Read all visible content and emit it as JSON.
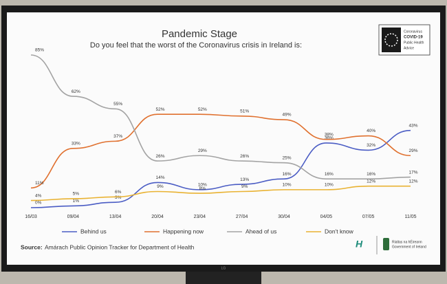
{
  "chart_data": {
    "type": "line",
    "title": "Pandemic Stage",
    "subtitle": "Do you feel that the worst of the Coronavirus crisis in Ireland is:",
    "categories": [
      "16/03",
      "09/04",
      "13/04",
      "20/04",
      "23/04",
      "27/04",
      "30/04",
      "04/05",
      "07/05",
      "11/05"
    ],
    "series": [
      {
        "name": "Behind us",
        "color": "#4a5cc4",
        "values": [
          0,
          1,
          3,
          14,
          10,
          13,
          16,
          36,
          32,
          43
        ],
        "value_labels": [
          "0%",
          "1%",
          "3%",
          "14%",
          "10%",
          "13%",
          "16%",
          "36%",
          "32%",
          "43%"
        ]
      },
      {
        "name": "Happening now",
        "color": "#e0702e",
        "values": [
          11,
          33,
          37,
          52,
          52,
          51,
          49,
          38,
          40,
          29
        ],
        "value_labels": [
          "11%",
          "33%",
          "37%",
          "52%",
          "52%",
          "51%",
          "49%",
          "38%",
          "40%",
          "29%"
        ]
      },
      {
        "name": "Ahead of us",
        "color": "#a3a3a3",
        "values": [
          85,
          62,
          55,
          26,
          29,
          26,
          25,
          16,
          16,
          17
        ],
        "value_labels": [
          "85%",
          "62%",
          "55%",
          "26%",
          "29%",
          "26%",
          "25%",
          "16%",
          "16%",
          "17%"
        ]
      },
      {
        "name": "Don't know",
        "color": "#e9b231",
        "values": [
          4,
          5,
          6,
          9,
          8,
          9,
          10,
          10,
          12,
          12
        ],
        "value_labels": [
          "4%",
          "5%",
          "6%",
          "9%",
          "8%",
          "9%",
          "10%",
          "10%",
          "12%",
          "12%"
        ]
      }
    ],
    "legend": "bottom",
    "source_label": "Source:",
    "source": "Amárach Public Opinion Tracker for Department of Health"
  },
  "branding": {
    "logo_lines": [
      "Coronavirus",
      "COVID-19",
      "Public Health",
      "Advice"
    ],
    "government": [
      "Rialtas na hÉireann",
      "Government of Ireland"
    ],
    "monitor": "LG"
  }
}
